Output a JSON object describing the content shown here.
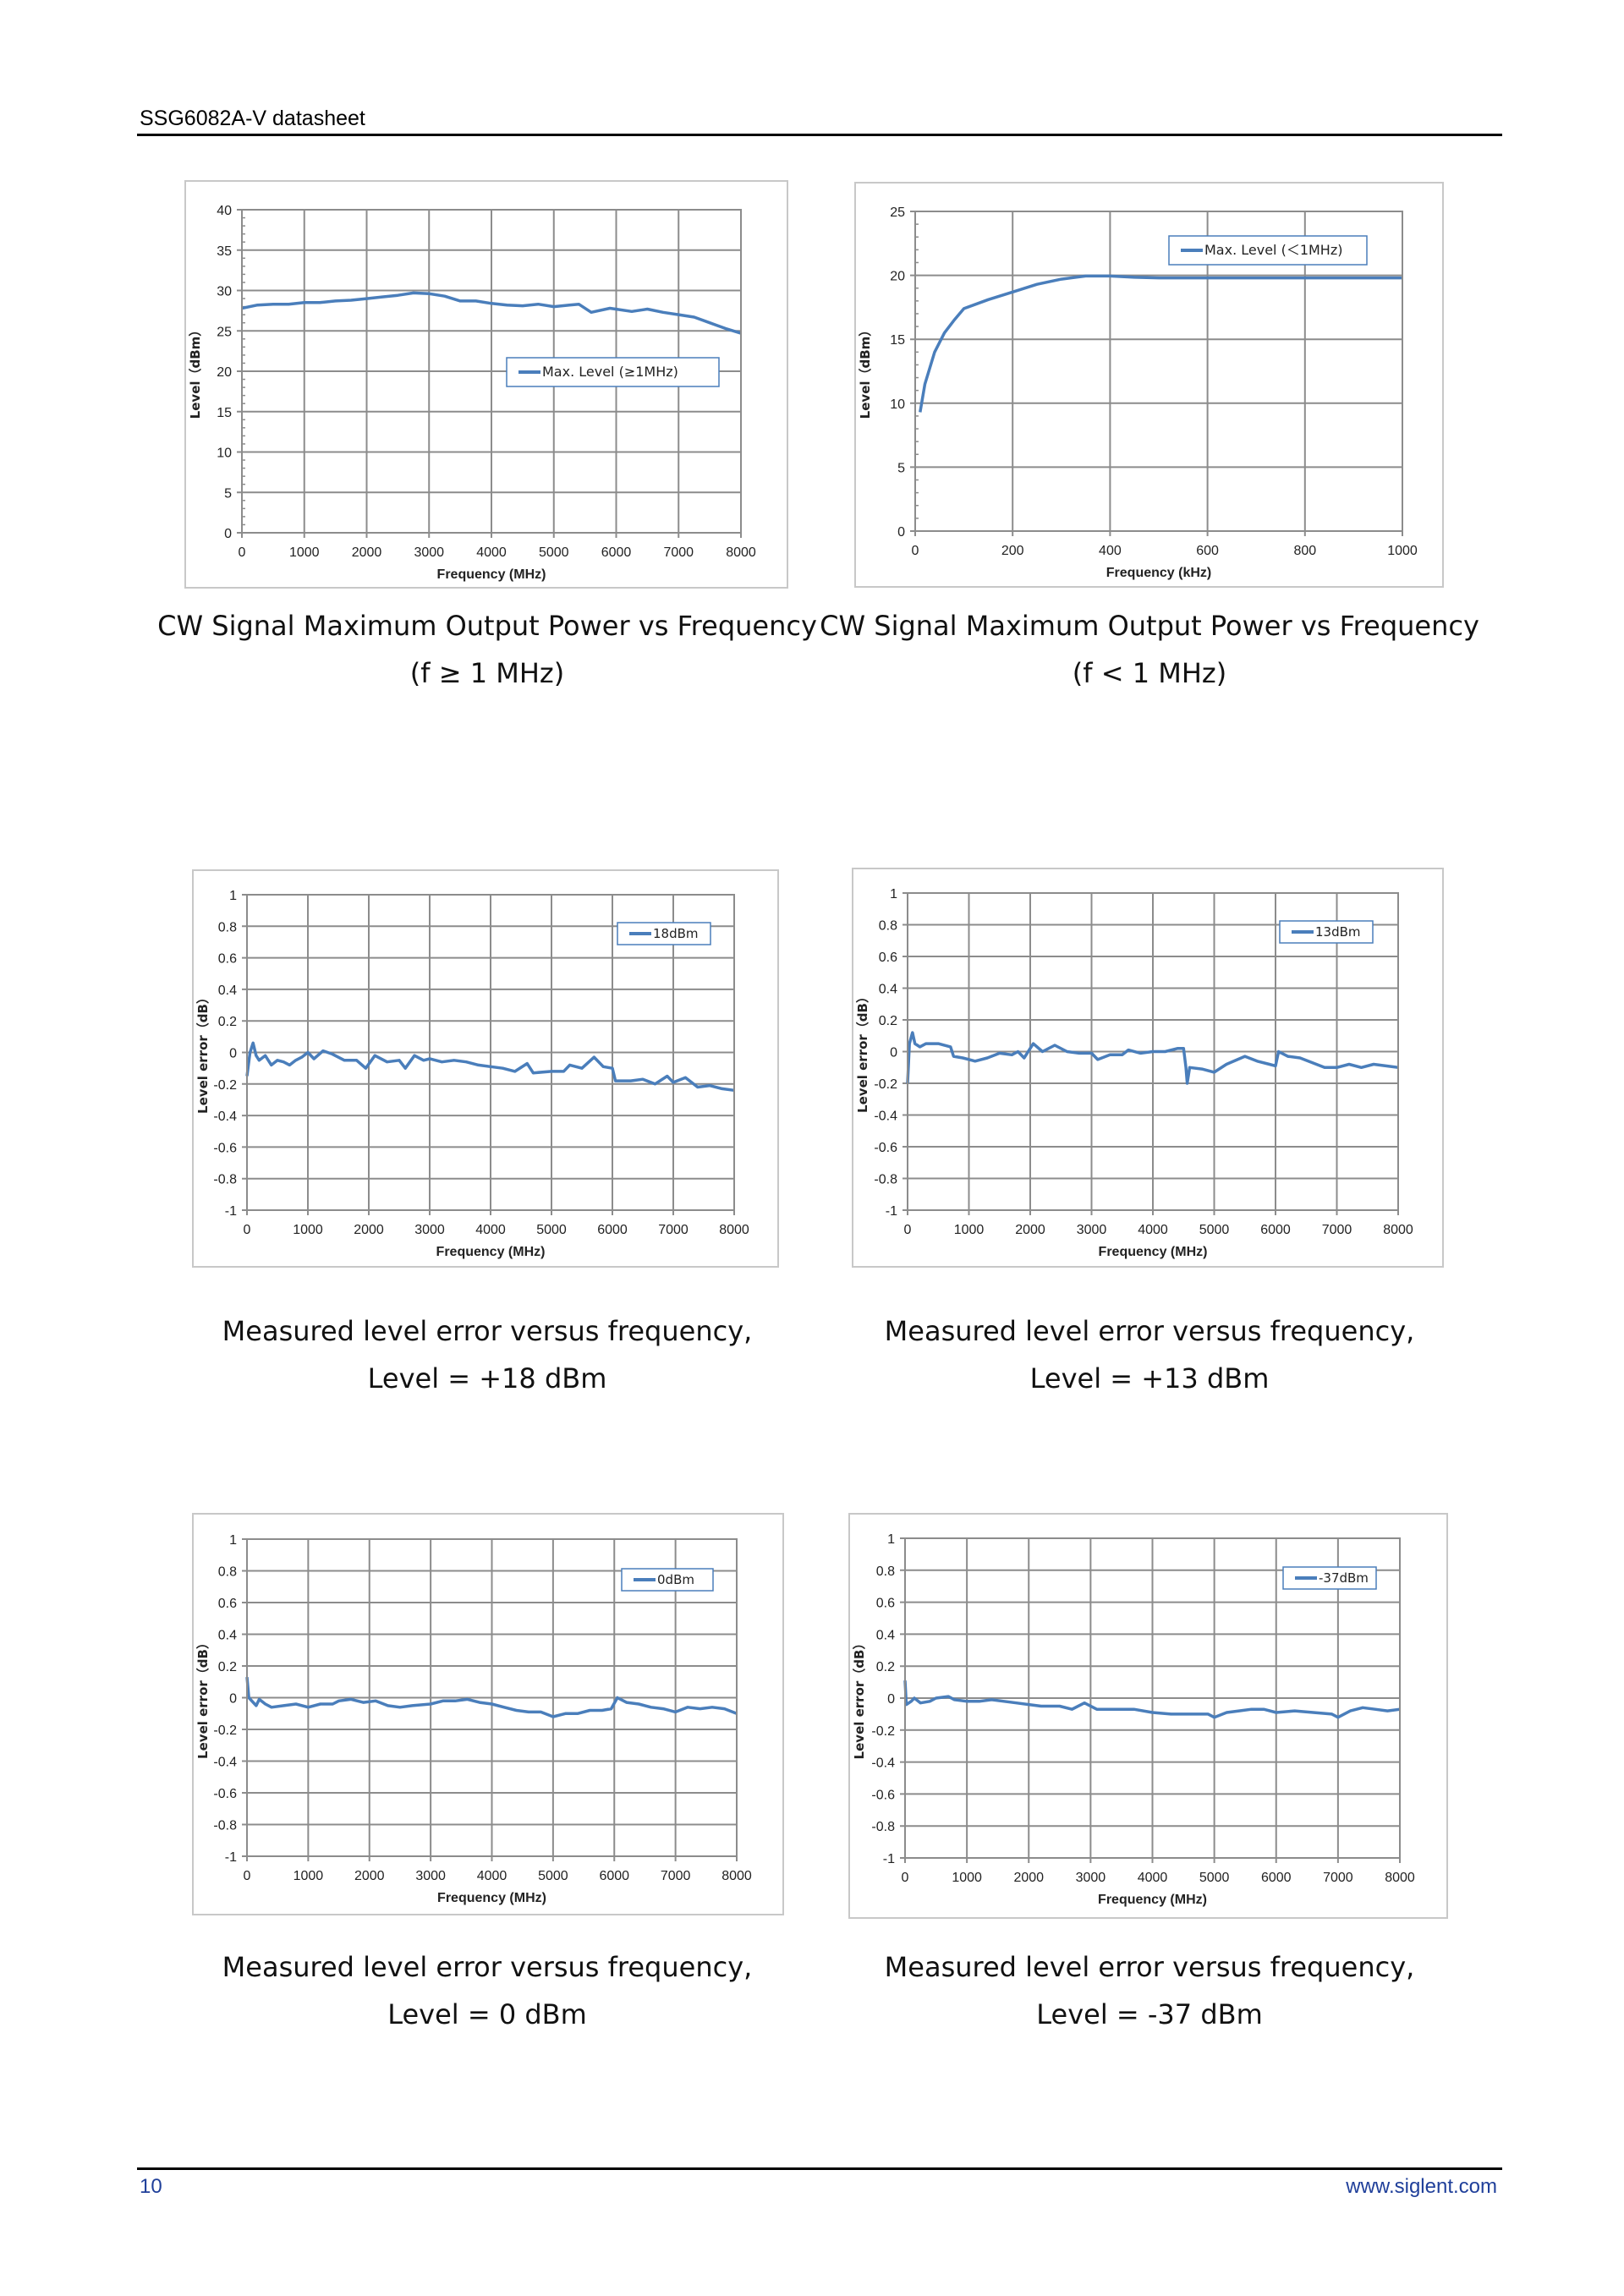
{
  "header": {
    "title": "SSG6082A-V datasheet"
  },
  "footer": {
    "page_number": "10",
    "website": "www.siglent.com"
  },
  "captions": [
    {
      "line1": "CW Signal Maximum Output Power vs Frequency",
      "line2": "(f ≥ 1 MHz)"
    },
    {
      "line1": "CW Signal Maximum Output Power vs Frequency",
      "line2": "(f < 1 MHz)"
    },
    {
      "line1": "Measured level error versus frequency,",
      "line2": "Level = +18 dBm"
    },
    {
      "line1": "Measured level error versus frequency,",
      "line2": "Level = +13 dBm"
    },
    {
      "line1": "Measured level error versus frequency,",
      "line2": "Level = 0 dBm"
    },
    {
      "line1": "Measured level error versus frequency,",
      "line2": "Level = -37 dBm"
    }
  ],
  "colors": {
    "series": "#4a7ebb",
    "grid": "#8c8c8c",
    "legend_border": "#4a7ebb"
  },
  "chart_data": [
    {
      "type": "line",
      "title": "",
      "xlabel": "Frequency (MHz)",
      "ylabel": "Level（dBm）",
      "xlim": [
        0,
        8000
      ],
      "ylim": [
        0,
        40
      ],
      "grid": true,
      "legend_position": "center-right",
      "xticks": [
        0,
        1000,
        2000,
        3000,
        4000,
        5000,
        6000,
        7000,
        8000
      ],
      "yticks": [
        0,
        5,
        10,
        15,
        20,
        25,
        30,
        35,
        40
      ],
      "series": [
        {
          "name": "Max. Level (≥1MHz)",
          "x": [
            0,
            250,
            500,
            750,
            1000,
            1250,
            1500,
            1750,
            2000,
            2250,
            2500,
            2750,
            3000,
            3250,
            3500,
            3750,
            4000,
            4250,
            4500,
            4750,
            5000,
            5250,
            5400,
            5600,
            5900,
            6250,
            6500,
            6750,
            7000,
            7250,
            7500,
            7750,
            8000
          ],
          "y": [
            27.8,
            28.2,
            28.3,
            28.3,
            28.5,
            28.5,
            28.7,
            28.8,
            29.0,
            29.2,
            29.4,
            29.7,
            29.6,
            29.3,
            28.7,
            28.7,
            28.4,
            28.2,
            28.1,
            28.3,
            28.0,
            28.2,
            28.3,
            27.3,
            27.8,
            27.4,
            27.7,
            27.3,
            27.0,
            26.7,
            26.0,
            25.3,
            24.7
          ]
        }
      ]
    },
    {
      "type": "line",
      "title": "",
      "xlabel": "Frequency (kHz)",
      "ylabel": "Level（dBm）",
      "xlim": [
        0,
        1000
      ],
      "ylim": [
        0,
        25
      ],
      "grid": true,
      "legend_position": "top-right",
      "xticks": [
        0,
        200,
        400,
        600,
        800,
        1000
      ],
      "yticks": [
        0,
        5,
        10,
        15,
        20,
        25
      ],
      "series": [
        {
          "name": "Max. Level (＜1MHz)",
          "x": [
            10,
            20,
            40,
            60,
            80,
            100,
            150,
            200,
            250,
            300,
            350,
            400,
            450,
            500,
            600,
            800,
            1000
          ],
          "y": [
            9.3,
            11.5,
            14.0,
            15.5,
            16.5,
            17.4,
            18.1,
            18.7,
            19.3,
            19.7,
            19.95,
            19.95,
            19.85,
            19.8,
            19.8,
            19.8,
            19.8
          ]
        }
      ]
    },
    {
      "type": "line",
      "title": "",
      "xlabel": "Frequency (MHz)",
      "ylabel": "Level error（dB）",
      "xlim": [
        0,
        8000
      ],
      "ylim": [
        -1,
        1
      ],
      "grid": true,
      "legend_position": "top-right",
      "xticks": [
        0,
        1000,
        2000,
        3000,
        4000,
        5000,
        6000,
        7000,
        8000
      ],
      "yticks": [
        -1,
        -0.8,
        -0.6,
        -0.4,
        -0.2,
        0,
        0.2,
        0.4,
        0.6,
        0.8,
        1
      ],
      "series": [
        {
          "name": "18dBm",
          "x": [
            0,
            50,
            100,
            150,
            200,
            300,
            400,
            500,
            600,
            700,
            800,
            900,
            1000,
            1100,
            1250,
            1400,
            1600,
            1800,
            1950,
            2100,
            2300,
            2500,
            2600,
            2750,
            2900,
            3000,
            3200,
            3400,
            3600,
            3800,
            4000,
            4200,
            4400,
            4600,
            4700,
            5000,
            5200,
            5300,
            5500,
            5700,
            5850,
            6000,
            6050,
            6300,
            6500,
            6700,
            6900,
            7000,
            7200,
            7400,
            7600,
            7800,
            8000
          ],
          "y": [
            -0.15,
            0.0,
            0.06,
            -0.02,
            -0.05,
            -0.02,
            -0.08,
            -0.05,
            -0.06,
            -0.08,
            -0.05,
            -0.03,
            0.0,
            -0.04,
            0.01,
            -0.01,
            -0.05,
            -0.05,
            -0.1,
            -0.02,
            -0.06,
            -0.05,
            -0.1,
            -0.02,
            -0.05,
            -0.04,
            -0.06,
            -0.05,
            -0.06,
            -0.08,
            -0.09,
            -0.1,
            -0.12,
            -0.07,
            -0.13,
            -0.12,
            -0.12,
            -0.08,
            -0.1,
            -0.03,
            -0.09,
            -0.1,
            -0.18,
            -0.18,
            -0.17,
            -0.2,
            -0.15,
            -0.19,
            -0.16,
            -0.22,
            -0.21,
            -0.23,
            -0.24
          ]
        }
      ]
    },
    {
      "type": "line",
      "title": "",
      "xlabel": "Frequency (MHz)",
      "ylabel": "Level error（dB）",
      "xlim": [
        0,
        8000
      ],
      "ylim": [
        -1,
        1
      ],
      "grid": true,
      "legend_position": "top-right",
      "xticks": [
        0,
        1000,
        2000,
        3000,
        4000,
        5000,
        6000,
        7000,
        8000
      ],
      "yticks": [
        -1,
        -0.8,
        -0.6,
        -0.4,
        -0.2,
        0,
        0.2,
        0.4,
        0.6,
        0.8,
        1
      ],
      "series": [
        {
          "name": "13dBm",
          "x": [
            0,
            30,
            80,
            120,
            200,
            300,
            500,
            700,
            750,
            900,
            1100,
            1300,
            1500,
            1700,
            1800,
            1900,
            2050,
            2200,
            2400,
            2600,
            2800,
            3000,
            3100,
            3300,
            3500,
            3600,
            3800,
            4000,
            4200,
            4400,
            4500,
            4540,
            4560,
            4600,
            4800,
            5000,
            5200,
            5500,
            5700,
            5900,
            6000,
            6050,
            6200,
            6400,
            6600,
            6800,
            7000,
            7200,
            7400,
            7600,
            7800,
            8000
          ],
          "y": [
            -0.2,
            0.05,
            0.12,
            0.05,
            0.03,
            0.05,
            0.05,
            0.03,
            -0.03,
            -0.04,
            -0.06,
            -0.04,
            -0.01,
            -0.02,
            0.0,
            -0.04,
            0.05,
            0.0,
            0.04,
            0.0,
            -0.01,
            -0.01,
            -0.05,
            -0.02,
            -0.02,
            0.01,
            -0.01,
            0.0,
            0.0,
            0.02,
            0.02,
            -0.1,
            -0.2,
            -0.1,
            -0.11,
            -0.13,
            -0.08,
            -0.03,
            -0.06,
            -0.08,
            -0.09,
            0.0,
            -0.03,
            -0.04,
            -0.07,
            -0.1,
            -0.1,
            -0.08,
            -0.1,
            -0.08,
            -0.09,
            -0.1
          ]
        }
      ]
    },
    {
      "type": "line",
      "title": "",
      "xlabel": "Frequency (MHz)",
      "ylabel": "Level error（dB）",
      "xlim": [
        0,
        8000
      ],
      "ylim": [
        -1,
        1
      ],
      "grid": true,
      "legend_position": "top-right",
      "xticks": [
        0,
        1000,
        2000,
        3000,
        4000,
        5000,
        6000,
        7000,
        8000
      ],
      "yticks": [
        -1,
        -0.8,
        -0.6,
        -0.4,
        -0.2,
        0,
        0.2,
        0.4,
        0.6,
        0.8,
        1
      ],
      "series": [
        {
          "name": "0dBm",
          "x": [
            0,
            30,
            150,
            200,
            300,
            400,
            600,
            800,
            1000,
            1200,
            1400,
            1500,
            1700,
            1900,
            2100,
            2300,
            2500,
            2700,
            3000,
            3200,
            3400,
            3600,
            3800,
            4000,
            4200,
            4400,
            4600,
            4800,
            5000,
            5200,
            5400,
            5600,
            5800,
            5950,
            6050,
            6200,
            6400,
            6600,
            6800,
            7000,
            7200,
            7400,
            7600,
            7800,
            8000
          ],
          "y": [
            0.13,
            0.0,
            -0.05,
            -0.01,
            -0.04,
            -0.06,
            -0.05,
            -0.04,
            -0.06,
            -0.04,
            -0.04,
            -0.02,
            -0.01,
            -0.03,
            -0.02,
            -0.05,
            -0.06,
            -0.05,
            -0.04,
            -0.02,
            -0.02,
            -0.01,
            -0.03,
            -0.04,
            -0.06,
            -0.08,
            -0.09,
            -0.09,
            -0.12,
            -0.1,
            -0.1,
            -0.08,
            -0.08,
            -0.07,
            0.0,
            -0.03,
            -0.04,
            -0.06,
            -0.07,
            -0.09,
            -0.06,
            -0.07,
            -0.06,
            -0.07,
            -0.1
          ]
        }
      ]
    },
    {
      "type": "line",
      "title": "",
      "xlabel": "Frequency (MHz)",
      "ylabel": "Level error（dB）",
      "xlim": [
        0,
        8000
      ],
      "ylim": [
        -1,
        1
      ],
      "grid": true,
      "legend_position": "top-right",
      "xticks": [
        0,
        1000,
        2000,
        3000,
        4000,
        5000,
        6000,
        7000,
        8000
      ],
      "yticks": [
        -1,
        -0.8,
        -0.6,
        -0.4,
        -0.2,
        0,
        0.2,
        0.4,
        0.6,
        0.8,
        1
      ],
      "series": [
        {
          "name": "-37dBm",
          "x": [
            0,
            20,
            100,
            150,
            250,
            400,
            500,
            700,
            800,
            1000,
            1200,
            1400,
            1600,
            1800,
            2000,
            2200,
            2500,
            2700,
            2900,
            3100,
            3400,
            3700,
            4000,
            4300,
            4600,
            4900,
            5000,
            5200,
            5400,
            5600,
            5800,
            6000,
            6300,
            6600,
            6900,
            7000,
            7200,
            7400,
            7600,
            7800,
            8000
          ],
          "y": [
            0.11,
            -0.04,
            -0.02,
            0.0,
            -0.03,
            -0.02,
            0.0,
            0.01,
            -0.01,
            -0.02,
            -0.02,
            -0.01,
            -0.02,
            -0.03,
            -0.04,
            -0.05,
            -0.05,
            -0.07,
            -0.03,
            -0.07,
            -0.07,
            -0.07,
            -0.09,
            -0.1,
            -0.1,
            -0.1,
            -0.12,
            -0.09,
            -0.08,
            -0.07,
            -0.07,
            -0.09,
            -0.08,
            -0.09,
            -0.1,
            -0.12,
            -0.08,
            -0.06,
            -0.07,
            -0.08,
            -0.07
          ]
        }
      ]
    }
  ]
}
